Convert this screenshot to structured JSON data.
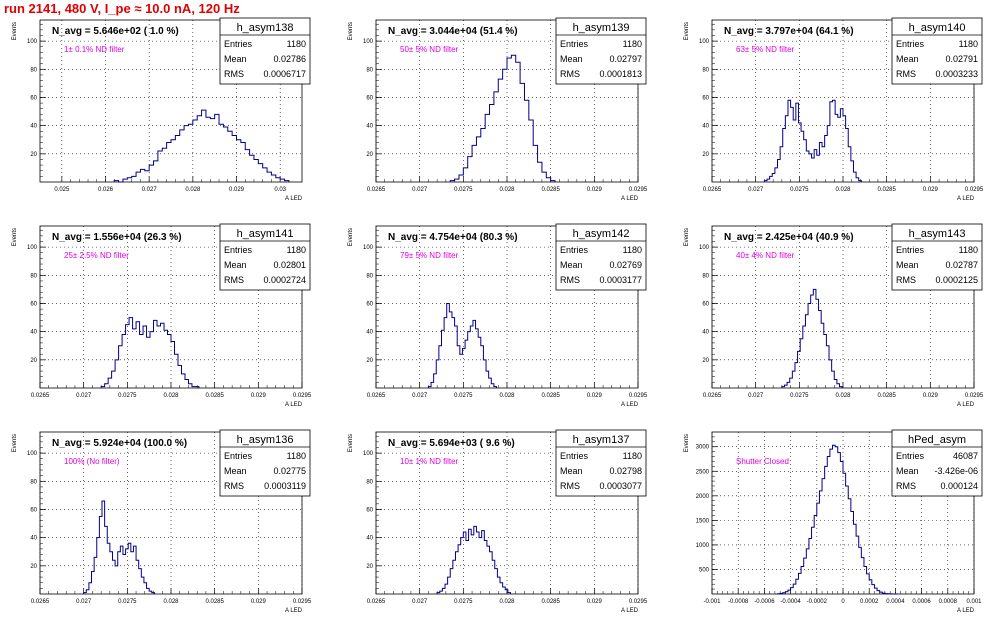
{
  "page_title": "run 2141,   480 V, I_pe ≈ 10.0 nA, 120 Hz",
  "colors": {
    "title": "#e00000",
    "annotation": "#e000e0",
    "histogram": "#00008b",
    "grid": "#000000"
  },
  "chart_data": [
    {
      "type": "histogram",
      "name": "h_asym138",
      "headline": "N_avg = 5.646e+02 ( 1.0 %)",
      "annotation": "1± 0.1% ND filter",
      "stats": [
        {
          "label": "Entries",
          "value": "1180"
        },
        {
          "label": "Mean",
          "value": "0.02786"
        },
        {
          "label": "RMS",
          "value": "0.0006717"
        }
      ],
      "ylabel": "Events",
      "xlabel": "A_LED",
      "xlim": [
        0.0245,
        0.0305
      ],
      "ylim": [
        0,
        115
      ],
      "xticks": [
        0.025,
        0.026,
        0.027,
        0.028,
        0.029,
        0.03
      ],
      "xtick_labels": [
        "0.025",
        "0.026",
        "0.027",
        "0.028",
        "0.029",
        "0.03"
      ],
      "yticks": [
        20,
        40,
        60,
        80,
        100
      ],
      "yticks_minor": 5,
      "bin_start": 0.0262,
      "bin_width": 0.0001,
      "values": [
        1,
        0,
        2,
        3,
        4,
        7,
        9,
        8,
        12,
        15,
        22,
        24,
        28,
        30,
        33,
        37,
        40,
        41,
        44,
        47,
        51,
        46,
        45,
        48,
        41,
        39,
        36,
        33,
        30,
        28,
        23,
        19,
        16,
        13,
        10,
        7,
        5,
        3,
        2,
        1
      ]
    },
    {
      "type": "histogram",
      "name": "h_asym139",
      "headline": "N_avg = 3.044e+04 (51.4 %)",
      "annotation": "50± 5% ND filter",
      "stats": [
        {
          "label": "Entries",
          "value": "1180"
        },
        {
          "label": "Mean",
          "value": "0.02797"
        },
        {
          "label": "RMS",
          "value": "0.0001813"
        }
      ],
      "ylabel": "Events",
      "xlabel": "A_LED",
      "xlim": [
        0.0265,
        0.0295
      ],
      "ylim": [
        0,
        115
      ],
      "xticks": [
        0.0265,
        0.027,
        0.0275,
        0.028,
        0.0285,
        0.029,
        0.0295
      ],
      "xtick_labels": [
        "0.0265",
        "0.027",
        "0.0275",
        "0.028",
        "0.0285",
        "0.029",
        "0.0295"
      ],
      "yticks": [
        20,
        40,
        60,
        80,
        100
      ],
      "yticks_minor": 5,
      "bin_start": 0.02735,
      "bin_width": 5e-05,
      "values": [
        1,
        2,
        5,
        10,
        18,
        26,
        32,
        38,
        48,
        55,
        64,
        73,
        80,
        88,
        90,
        85,
        70,
        58,
        44,
        26,
        14,
        7,
        3,
        1
      ]
    },
    {
      "type": "histogram",
      "name": "h_asym140",
      "headline": "N_avg = 3.797e+04 (64.1 %)",
      "annotation": "63± 5% ND filter",
      "stats": [
        {
          "label": "Entries",
          "value": "1180"
        },
        {
          "label": "Mean",
          "value": "0.02791"
        },
        {
          "label": "RMS",
          "value": "0.0003233"
        }
      ],
      "ylabel": "Events",
      "xlabel": "A_LED",
      "xlim": [
        0.0265,
        0.0295
      ],
      "ylim": [
        0,
        115
      ],
      "xticks": [
        0.0265,
        0.027,
        0.0275,
        0.028,
        0.0285,
        0.029,
        0.0295
      ],
      "xtick_labels": [
        "0.0265",
        "0.027",
        "0.0275",
        "0.028",
        "0.0285",
        "0.029",
        "0.0295"
      ],
      "yticks": [
        20,
        40,
        60,
        80,
        100
      ],
      "yticks_minor": 5,
      "bin_start": 0.0271,
      "bin_width": 3e-05,
      "values": [
        1,
        2,
        4,
        6,
        10,
        16,
        25,
        38,
        47,
        58,
        53,
        44,
        56,
        42,
        36,
        30,
        22,
        20,
        17,
        23,
        19,
        28,
        25,
        33,
        40,
        57,
        58,
        48,
        46,
        52,
        47,
        38,
        25,
        15,
        7,
        3,
        1
      ]
    },
    {
      "type": "histogram",
      "name": "h_asym141",
      "headline": "N_avg = 1.556e+04 (26.3 %)",
      "annotation": "25± 2.5% ND filter",
      "stats": [
        {
          "label": "Entries",
          "value": "1180"
        },
        {
          "label": "Mean",
          "value": "0.02801"
        },
        {
          "label": "RMS",
          "value": "0.0002724"
        }
      ],
      "ylabel": "Events",
      "xlabel": "A_LED",
      "xlim": [
        0.0265,
        0.0295
      ],
      "ylim": [
        0,
        115
      ],
      "xticks": [
        0.0265,
        0.027,
        0.0275,
        0.028,
        0.0285,
        0.029,
        0.0295
      ],
      "xtick_labels": [
        "0.0265",
        "0.027",
        "0.0275",
        "0.028",
        "0.0285",
        "0.029",
        "0.0295"
      ],
      "yticks": [
        20,
        40,
        60,
        80,
        100
      ],
      "yticks_minor": 5,
      "bin_start": 0.0272,
      "bin_width": 4e-05,
      "values": [
        1,
        3,
        7,
        12,
        20,
        30,
        38,
        45,
        50,
        42,
        47,
        38,
        44,
        36,
        40,
        48,
        44,
        46,
        41,
        38,
        33,
        24,
        16,
        10,
        6,
        3,
        1,
        1
      ]
    },
    {
      "type": "histogram",
      "name": "h_asym142",
      "headline": "N_avg = 4.754e+04 (80.3 %)",
      "annotation": "79± 5% ND filter",
      "stats": [
        {
          "label": "Entries",
          "value": "1180"
        },
        {
          "label": "Mean",
          "value": "0.02769"
        },
        {
          "label": "RMS",
          "value": "0.0003177"
        }
      ],
      "ylabel": "Events",
      "xlabel": "A_LED",
      "xlim": [
        0.0265,
        0.0295
      ],
      "ylim": [
        0,
        115
      ],
      "xticks": [
        0.0265,
        0.027,
        0.0275,
        0.028,
        0.0285,
        0.029,
        0.0295
      ],
      "xtick_labels": [
        "0.0265",
        "0.027",
        "0.0275",
        "0.028",
        "0.0285",
        "0.029",
        "0.0295"
      ],
      "yticks": [
        20,
        40,
        60,
        80,
        100
      ],
      "yticks_minor": 5,
      "bin_start": 0.0271,
      "bin_width": 3e-05,
      "values": [
        1,
        4,
        10,
        20,
        30,
        41,
        50,
        60,
        54,
        50,
        44,
        30,
        24,
        28,
        34,
        40,
        44,
        48,
        42,
        36,
        30,
        20,
        12,
        7,
        3,
        1
      ]
    },
    {
      "type": "histogram",
      "name": "h_asym143",
      "headline": "N_avg = 2.425e+04 (40.9 %)",
      "annotation": "40± 4% ND filter",
      "stats": [
        {
          "label": "Entries",
          "value": "1180"
        },
        {
          "label": "Mean",
          "value": "0.02787"
        },
        {
          "label": "RMS",
          "value": "0.0002125"
        }
      ],
      "ylabel": "Events",
      "xlabel": "A_LED",
      "xlim": [
        0.0265,
        0.0295
      ],
      "ylim": [
        0,
        115
      ],
      "xticks": [
        0.0265,
        0.027,
        0.0275,
        0.028,
        0.0285,
        0.029,
        0.0295
      ],
      "xtick_labels": [
        "0.0265",
        "0.027",
        "0.0275",
        "0.028",
        "0.0285",
        "0.029",
        "0.0295"
      ],
      "yticks": [
        20,
        40,
        60,
        80,
        100
      ],
      "yticks_minor": 5,
      "bin_start": 0.0273,
      "bin_width": 3e-05,
      "values": [
        1,
        2,
        4,
        7,
        12,
        18,
        26,
        35,
        44,
        52,
        60,
        66,
        70,
        63,
        55,
        46,
        38,
        30,
        20,
        12,
        6,
        3,
        1
      ]
    },
    {
      "type": "histogram",
      "name": "h_asym136",
      "headline": "N_avg = 5.924e+04 (100.0 %)",
      "annotation": "100% (No filter)",
      "stats": [
        {
          "label": "Entries",
          "value": "1180"
        },
        {
          "label": "Mean",
          "value": "0.02775"
        },
        {
          "label": "RMS",
          "value": "0.0003119"
        }
      ],
      "ylabel": "Events",
      "xlabel": "A_LED",
      "xlim": [
        0.0265,
        0.0295
      ],
      "ylim": [
        0,
        115
      ],
      "xticks": [
        0.0265,
        0.027,
        0.0275,
        0.028,
        0.0285,
        0.029,
        0.0295
      ],
      "xtick_labels": [
        "0.0265",
        "0.027",
        "0.0275",
        "0.028",
        "0.0285",
        "0.029",
        "0.0295"
      ],
      "yticks": [
        20,
        40,
        60,
        80,
        100
      ],
      "yticks_minor": 5,
      "bin_start": 0.027,
      "bin_width": 3e-05,
      "values": [
        1,
        3,
        8,
        16,
        26,
        40,
        55,
        66,
        48,
        36,
        30,
        24,
        20,
        30,
        34,
        28,
        32,
        36,
        30,
        34,
        24,
        18,
        12,
        8,
        4,
        2,
        1
      ]
    },
    {
      "type": "histogram",
      "name": "h_asym137",
      "headline": "N_avg = 5.694e+03 ( 9.6 %)",
      "annotation": "10± 1% ND filter",
      "stats": [
        {
          "label": "Entries",
          "value": "1180"
        },
        {
          "label": "Mean",
          "value": "0.02798"
        },
        {
          "label": "RMS",
          "value": "0.0003077"
        }
      ],
      "ylabel": "Events",
      "xlabel": "A_LED",
      "xlim": [
        0.0265,
        0.0295
      ],
      "ylim": [
        0,
        115
      ],
      "xticks": [
        0.0265,
        0.027,
        0.0275,
        0.028,
        0.0285,
        0.029,
        0.0295
      ],
      "xtick_labels": [
        "0.0265",
        "0.027",
        "0.0275",
        "0.028",
        "0.0285",
        "0.029",
        "0.0295"
      ],
      "yticks": [
        20,
        40,
        60,
        80,
        100
      ],
      "yticks_minor": 5,
      "bin_start": 0.0272,
      "bin_width": 3e-05,
      "values": [
        1,
        2,
        4,
        7,
        12,
        18,
        24,
        30,
        35,
        40,
        44,
        38,
        46,
        42,
        48,
        44,
        40,
        45,
        38,
        34,
        30,
        24,
        18,
        12,
        8,
        5,
        3,
        1
      ]
    },
    {
      "type": "histogram",
      "name": "hPed_asym",
      "headline": "",
      "annotation": "Shutter Closed",
      "stats": [
        {
          "label": "Entries",
          "value": "46087"
        },
        {
          "label": "Mean",
          "value": "-3.426e-06"
        },
        {
          "label": "RMS",
          "value": "0.000124"
        }
      ],
      "ylabel": "Events",
      "xlabel": "A_LED",
      "xlim": [
        -0.001,
        0.001
      ],
      "ylim": [
        0,
        3300
      ],
      "xticks": [
        -0.001,
        -0.0008,
        -0.0006,
        -0.0004,
        -0.0002,
        0,
        0.0002,
        0.0004,
        0.0006,
        0.0008,
        0.001
      ],
      "xtick_labels": [
        "-0.001",
        "-0.0008",
        "-0.0006",
        "-0.0004",
        "-0.0002",
        "0",
        "0.0002",
        "0.0004",
        "0.0006",
        "0.0008",
        "0.001"
      ],
      "yticks": [
        500,
        1000,
        1500,
        2000,
        2500,
        3000
      ],
      "yticks_minor": 5,
      "bin_start": -0.0005,
      "bin_width": 2e-05,
      "values": [
        5,
        12,
        25,
        45,
        80,
        130,
        200,
        300,
        420,
        560,
        730,
        920,
        1130,
        1360,
        1600,
        1850,
        2100,
        2350,
        2600,
        2800,
        2950,
        3030,
        3000,
        2880,
        2700,
        2460,
        2200,
        1940,
        1680,
        1420,
        1180,
        950,
        740,
        560,
        410,
        290,
        190,
        120,
        70,
        38,
        18,
        8,
        4,
        2,
        1,
        0
      ]
    }
  ]
}
